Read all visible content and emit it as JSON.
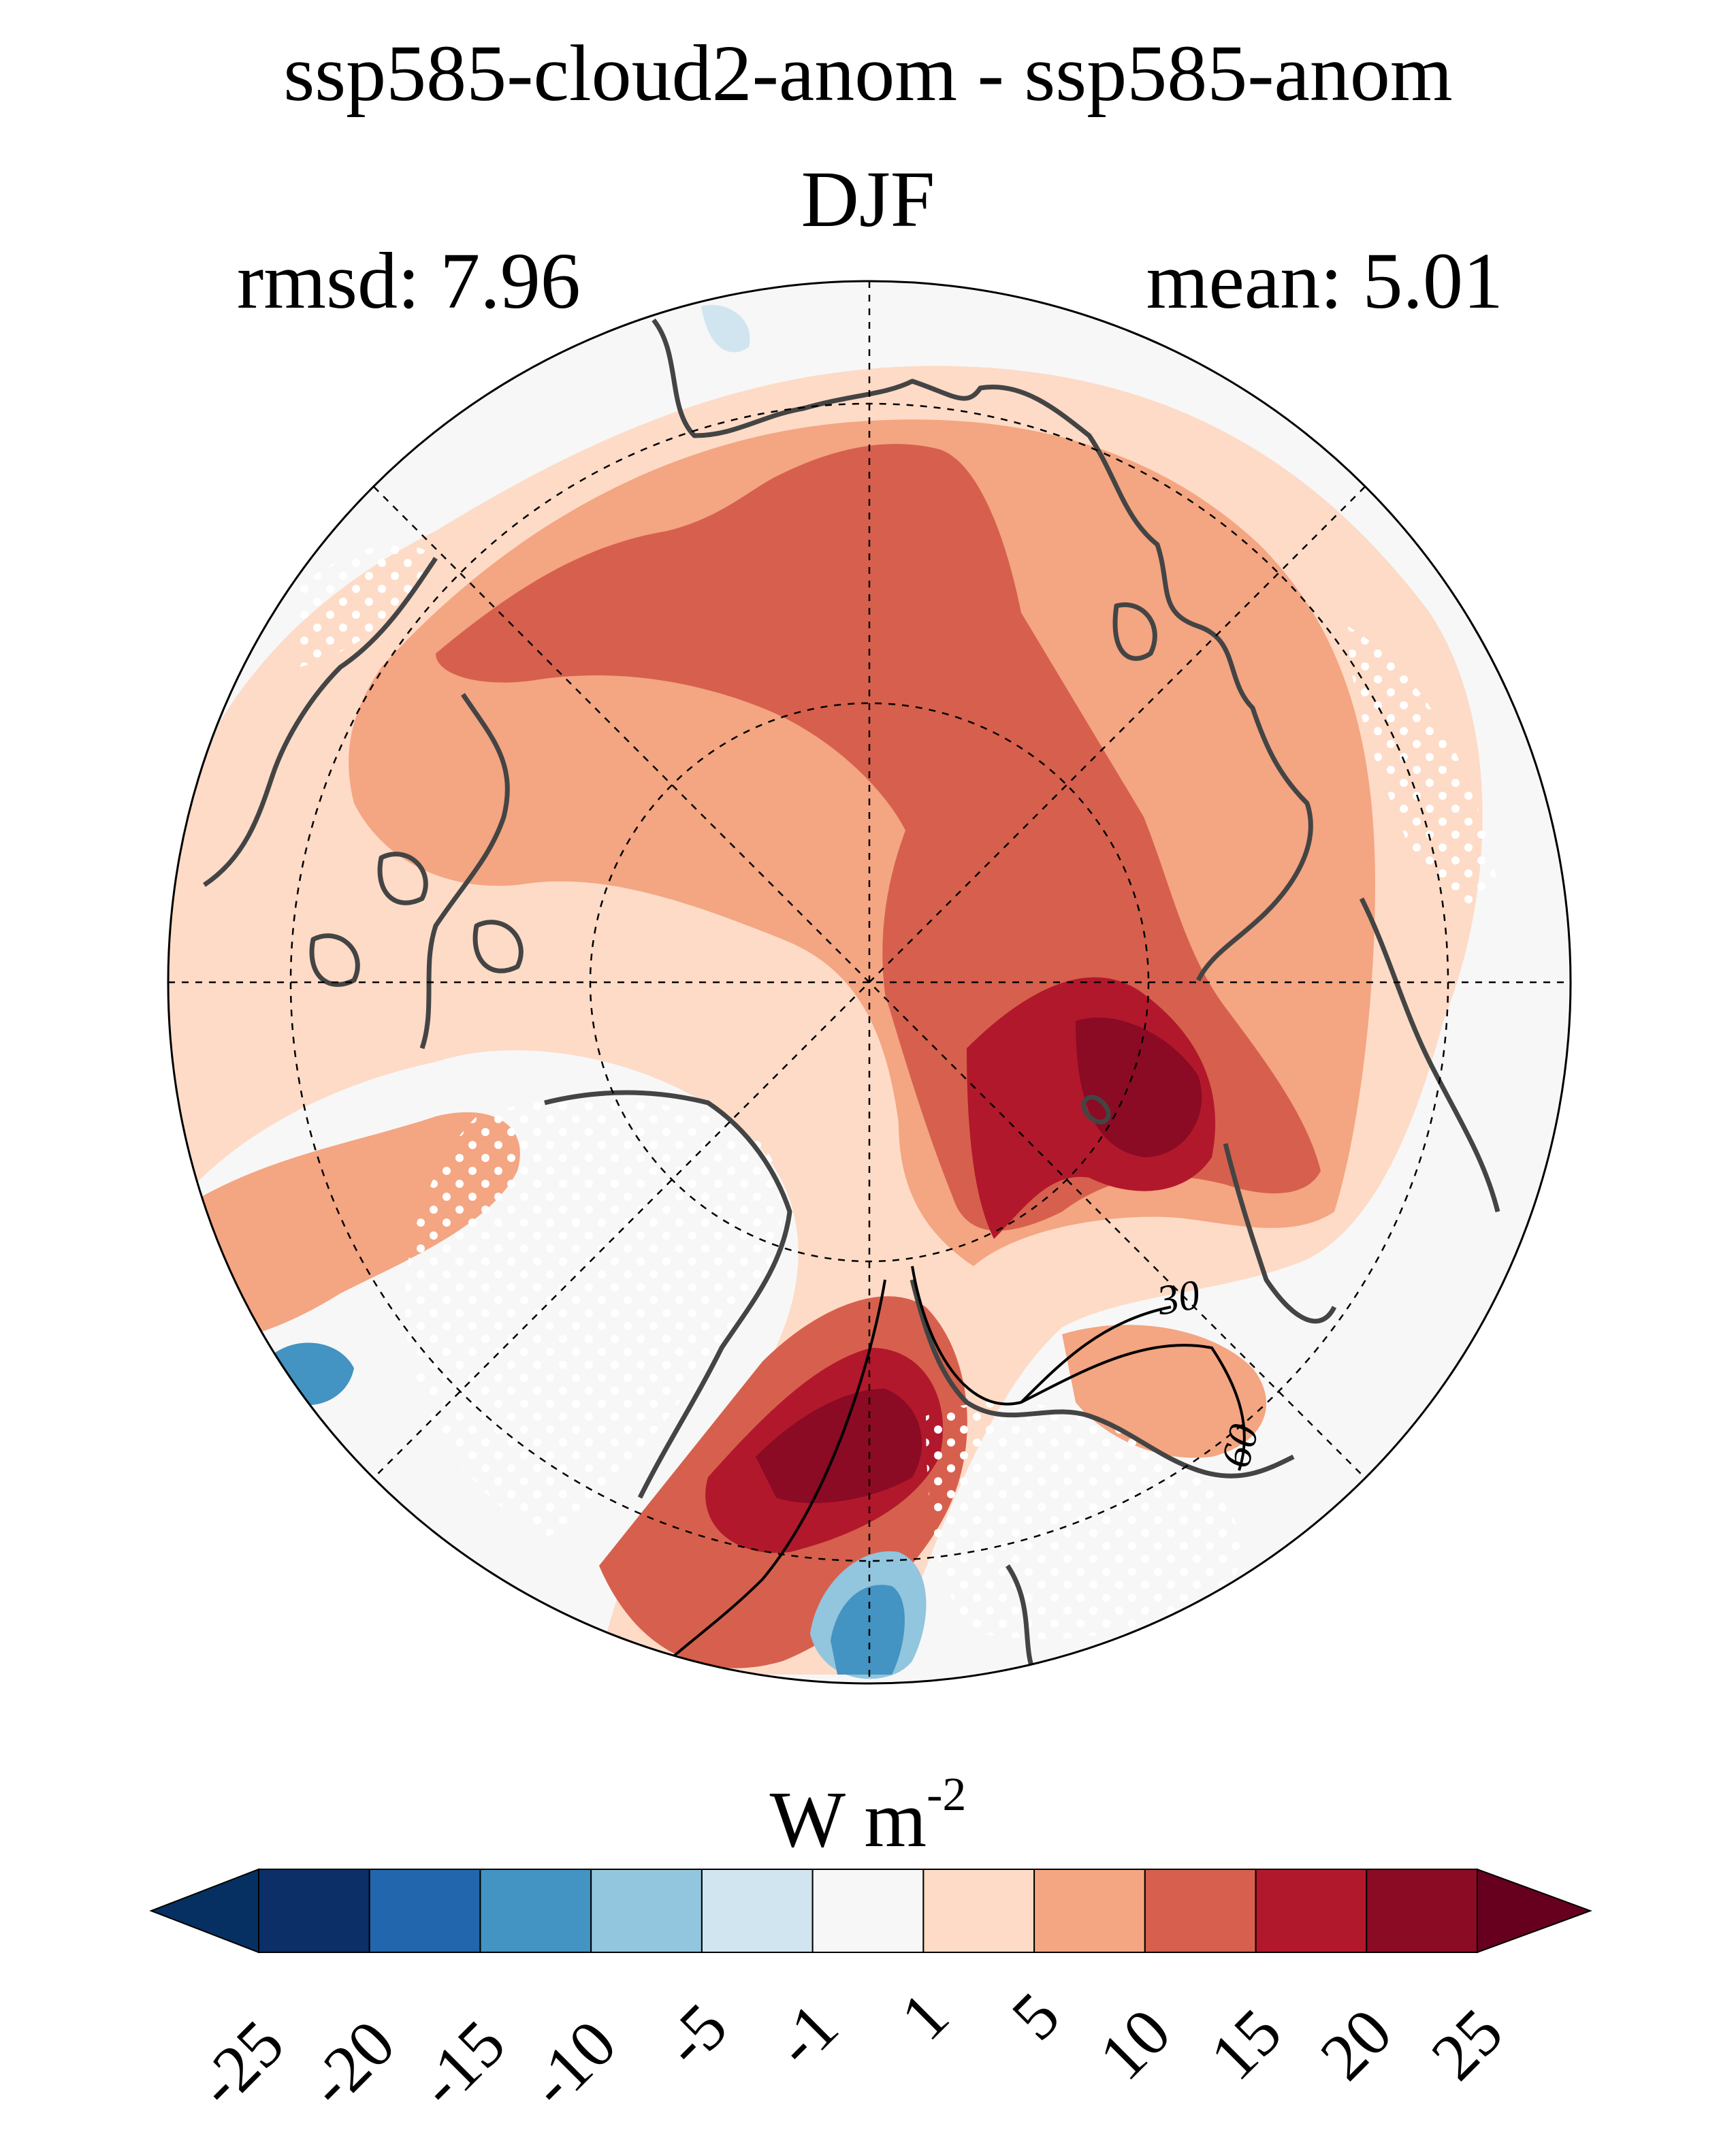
{
  "header": {
    "title": "ssp585-cloud2-anom - ssp585-anom",
    "season": "DJF",
    "rmsd_text": "rmsd: 7.96",
    "mean_text": "mean: 5.01"
  },
  "colorbar": {
    "unit_base": "W m",
    "unit_exp": "-2",
    "ticks": [
      "-25",
      "-20",
      "-15",
      "-10",
      "-5",
      "-1",
      "1",
      "5",
      "10",
      "15",
      "20",
      "25"
    ],
    "colors": [
      "#053061",
      "#0b2f66",
      "#2266ad",
      "#4393c3",
      "#92c5de",
      "#d1e5f0",
      "#f7f7f7",
      "#fddbc7",
      "#f4a582",
      "#d6604d",
      "#b2182b",
      "#8b0a24",
      "#67001f"
    ]
  },
  "contours": {
    "labels": [
      "30",
      "60"
    ]
  },
  "chart_data": {
    "type": "heatmap",
    "projection": "north polar stereographic",
    "title": "ssp585-cloud2-anom - ssp585-anom",
    "subtitle": "DJF",
    "stats": {
      "rmsd": 7.96,
      "mean": 5.01
    },
    "unit": "W m-2",
    "levels": [
      -25,
      -20,
      -15,
      -10,
      -5,
      -1,
      1,
      5,
      10,
      15,
      20,
      25
    ],
    "extend": "both",
    "overlay_contour_levels": [
      30,
      60
    ],
    "stippling": "non-significant areas marked with white dots"
  }
}
